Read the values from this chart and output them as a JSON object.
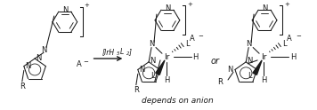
{
  "background_color": "#ffffff",
  "text_color": "#1a1a1a",
  "caption": "depends on anion",
  "caption_style": "italic",
  "caption_fontsize": 6.5,
  "figsize": [
    3.56,
    1.24
  ],
  "dpi": 100,
  "reagent_label": "[IrH5L2]",
  "or_text": "or"
}
